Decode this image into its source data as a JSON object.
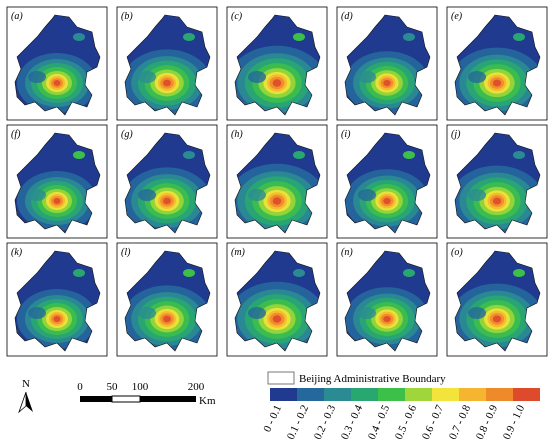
{
  "panels": [
    "(a)",
    "(b)",
    "(c)",
    "(d)",
    "(e)",
    "(f)",
    "(g)",
    "(h)",
    "(i)",
    "(j)",
    "(k)",
    "(l)",
    "(m)",
    "(n)",
    "(o)"
  ],
  "north_arrow": "N",
  "scale_bar": {
    "labels": [
      "0",
      "50",
      "100",
      "200"
    ],
    "unit": "Km"
  },
  "legend": {
    "boundary": "Beijing Administrative Boundary",
    "items": [
      {
        "label": "0 - 0.1",
        "color": "#1f3a8f"
      },
      {
        "label": "0.1 - 0.2",
        "color": "#25689c"
      },
      {
        "label": "0.2 - 0.3",
        "color": "#2a8c92"
      },
      {
        "label": "0.3 - 0.4",
        "color": "#29a771"
      },
      {
        "label": "0.4 - 0.5",
        "color": "#3cc04a"
      },
      {
        "label": "0.5 - 0.6",
        "color": "#9fd63a"
      },
      {
        "label": "0.6 - 0.7",
        "color": "#f2e43a"
      },
      {
        "label": "0.7 - 0.8",
        "color": "#f6b530"
      },
      {
        "label": "0.8 - 0.9",
        "color": "#ef8a2b"
      },
      {
        "label": "0.9 - 1.0",
        "color": "#dd4a2c"
      }
    ]
  }
}
